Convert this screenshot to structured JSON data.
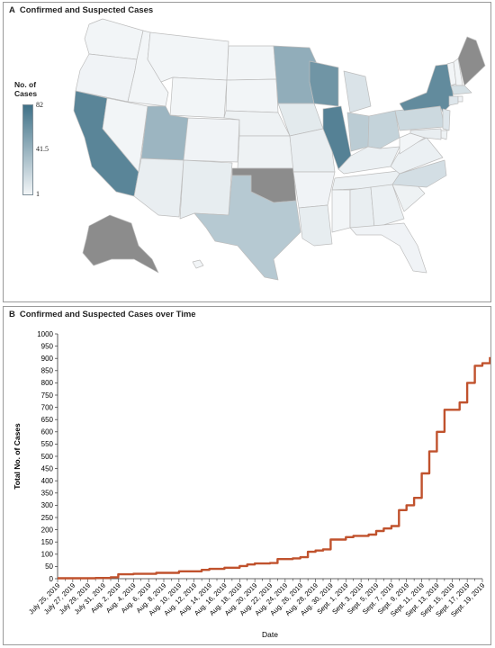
{
  "panel_a": {
    "letter": "A",
    "title": "Confirmed and Suspected Cases",
    "legend": {
      "title_line1": "No. of",
      "title_line2": "Cases",
      "max_label": "82",
      "mid_label": "41.5",
      "min_label": "1",
      "color_low": "#f2f5f7",
      "color_high": "#3f7187"
    },
    "no_data_color": "#8c8c8c"
  },
  "panel_b": {
    "letter": "B",
    "title": "Confirmed and Suspected Cases over Time"
  },
  "chart_data": [
    {
      "type": "choropleth-map",
      "title": "Confirmed and Suspected Cases",
      "scale": {
        "min": 1,
        "mid": 41.5,
        "max": 82
      },
      "states": {
        "CA": 70,
        "IL": 72,
        "WI": 60,
        "NY": 66,
        "MN": 45,
        "UT": 40,
        "TX": 28,
        "IN": 26,
        "OH": 22,
        "PA": 18,
        "NC": 15,
        "MI": 12,
        "IA": 8,
        "NJ": 10,
        "NM": 6,
        "AZ": 5,
        "MO": 5,
        "KS": 3,
        "NE": 3,
        "CO": 2,
        "OR": 2,
        "WA": 1,
        "ID": 1,
        "MT": 1,
        "WY": 1,
        "NV": 1,
        "ND": 1,
        "SD": 1,
        "AR": 2,
        "LA": 6,
        "MS": 1,
        "AL": 5,
        "GA": 4,
        "FL": 2,
        "SC": 3,
        "TN": 4,
        "KY": 4,
        "VA": 4,
        "WV": 1,
        "MD": 5,
        "DE": 3,
        "CT": 10,
        "MA": 14,
        "RI": 2,
        "NH": 1,
        "VT": 1,
        "HI": 1,
        "OK": null,
        "ME": null,
        "AK": null
      }
    },
    {
      "type": "line",
      "title": "Confirmed and Suspected Cases over Time",
      "xlabel": "Date",
      "ylabel": "Total No. of Cases",
      "ylim": [
        0,
        1000
      ],
      "yticks": [
        0,
        50,
        100,
        150,
        200,
        250,
        300,
        350,
        400,
        450,
        500,
        550,
        600,
        650,
        700,
        750,
        800,
        850,
        900,
        950,
        1000
      ],
      "xticks": [
        "July 25, 2019",
        "July 27, 2019",
        "July 29, 2019",
        "July 31, 2019",
        "Aug. 2, 2019",
        "Aug. 4, 2019",
        "Aug. 6, 2019",
        "Aug. 8, 2019",
        "Aug. 10, 2019",
        "Aug. 12, 2019",
        "Aug. 14, 2019",
        "Aug. 16, 2019",
        "Aug. 18, 2019",
        "Aug. 20, 2019",
        "Aug. 22, 2019",
        "Aug. 24, 2019",
        "Aug. 26, 2019",
        "Aug. 28, 2019",
        "Aug. 30, 2019",
        "Sept. 1, 2019",
        "Sept. 3, 2019",
        "Sept. 5, 2019",
        "Sept. 7, 2019",
        "Sept. 9, 2019",
        "Sept. 11, 2019",
        "Sept. 13, 2019",
        "Sept. 15, 2019",
        "Sept. 17, 2019",
        "Sept. 19, 2019"
      ],
      "series": [
        {
          "color": "#c0522d",
          "points": [
            [
              "2019-07-25",
              2
            ],
            [
              "2019-07-30",
              3
            ],
            [
              "2019-08-01",
              6
            ],
            [
              "2019-08-02",
              18
            ],
            [
              "2019-08-04",
              20
            ],
            [
              "2019-08-07",
              24
            ],
            [
              "2019-08-10",
              30
            ],
            [
              "2019-08-13",
              36
            ],
            [
              "2019-08-14",
              40
            ],
            [
              "2019-08-16",
              45
            ],
            [
              "2019-08-18",
              52
            ],
            [
              "2019-08-19",
              58
            ],
            [
              "2019-08-20",
              62
            ],
            [
              "2019-08-22",
              64
            ],
            [
              "2019-08-23",
              80
            ],
            [
              "2019-08-25",
              83
            ],
            [
              "2019-08-26",
              88
            ],
            [
              "2019-08-27",
              110
            ],
            [
              "2019-08-28",
              115
            ],
            [
              "2019-08-29",
              120
            ],
            [
              "2019-08-30",
              160
            ],
            [
              "2019-09-01",
              170
            ],
            [
              "2019-09-02",
              175
            ],
            [
              "2019-09-04",
              180
            ],
            [
              "2019-09-05",
              195
            ],
            [
              "2019-09-06",
              205
            ],
            [
              "2019-09-07",
              215
            ],
            [
              "2019-09-08",
              280
            ],
            [
              "2019-09-09",
              300
            ],
            [
              "2019-09-10",
              330
            ],
            [
              "2019-09-11",
              395
            ],
            [
              "2019-09-11",
              430
            ],
            [
              "2019-09-12",
              520
            ],
            [
              "2019-09-13",
              600
            ],
            [
              "2019-09-14",
              690
            ],
            [
              "2019-09-16",
              720
            ],
            [
              "2019-09-17",
              760
            ],
            [
              "2019-09-17",
              800
            ],
            [
              "2019-09-18",
              805
            ],
            [
              "2019-09-18",
              870
            ],
            [
              "2019-09-19",
              880
            ],
            [
              "2019-09-20",
              905
            ]
          ]
        }
      ]
    }
  ]
}
